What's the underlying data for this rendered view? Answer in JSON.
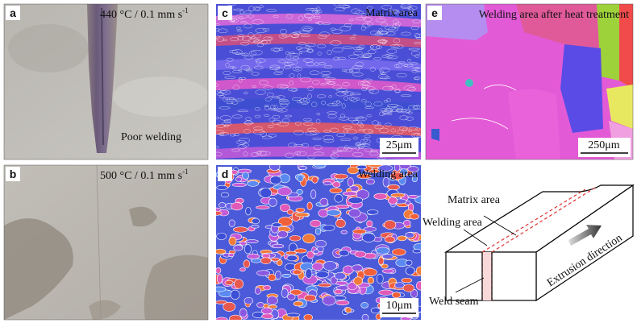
{
  "panels": [
    {
      "label": "a",
      "condition": {
        "text": "440 °C / 0.1 mm s",
        "sup": "-1"
      },
      "note": "Poor welding"
    },
    {
      "label": "b",
      "condition": {
        "text": "500 °C / 0.1 mm s",
        "sup": "-1"
      }
    },
    {
      "label": "c",
      "title": "Matrix area",
      "scale_bar": "25μm"
    },
    {
      "label": "d",
      "title": "Welding area",
      "scale_bar": "10μm"
    },
    {
      "label": "e",
      "title": "Welding area after heat treatment",
      "scale_bar": "250μm"
    }
  ],
  "diagram": {
    "labels": [
      "Matrix area",
      "Welding area",
      "Weld seam"
    ],
    "direction": "Extrusion direction"
  }
}
